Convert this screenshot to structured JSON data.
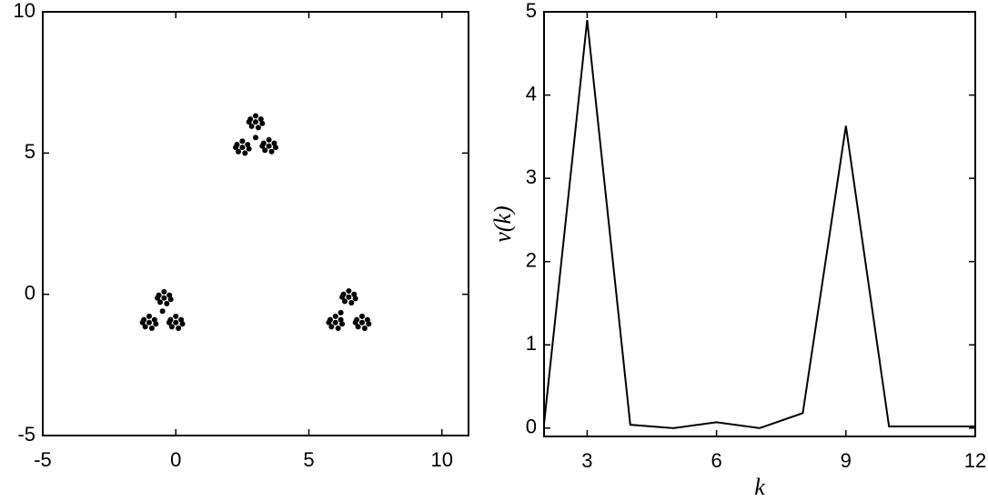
{
  "chart_data": [
    {
      "type": "scatter",
      "color": "#000000",
      "xlim": [
        -5,
        11
      ],
      "xticks": [
        -5,
        0,
        5,
        10
      ],
      "ylim": [
        -5,
        10
      ],
      "yticks": [
        -5,
        0,
        5,
        10
      ],
      "x": [
        -0.44,
        -0.24,
        -0.64,
        -0.34,
        -0.59,
        -0.19,
        -0.69,
        -0.44,
        -1,
        -0.8,
        -1.2,
        -0.9,
        -1.15,
        -0.75,
        -1.25,
        -1,
        0,
        0.2,
        -0.2,
        0.1,
        -0.15,
        0.25,
        -0.25,
        0,
        3,
        3.2,
        2.8,
        3.1,
        2.85,
        3.25,
        2.75,
        3,
        2.5,
        2.7,
        2.3,
        2.6,
        2.35,
        2.75,
        2.25,
        2.5,
        3.5,
        3.7,
        3.3,
        3.6,
        3.35,
        3.75,
        3.25,
        3.5,
        6.5,
        6.7,
        6.3,
        6.6,
        6.35,
        6.75,
        6.25,
        6.5,
        6,
        6.2,
        5.8,
        6.1,
        5.85,
        6.25,
        5.75,
        6,
        7,
        7.2,
        6.8,
        7.1,
        6.85,
        7.25,
        6.75,
        7,
        6.2,
        -0.5,
        3.0
      ],
      "y": [
        -0.13,
        -0.03,
        -0.03,
        -0.33,
        -0.28,
        -0.18,
        -0.13,
        0.09,
        -1,
        -0.9,
        -0.9,
        -1.2,
        -1.15,
        -1.05,
        -1,
        -0.78,
        -1,
        -0.9,
        -0.9,
        -1.2,
        -1.15,
        -1.05,
        -1,
        -0.78,
        6.1,
        6.2,
        6.2,
        5.9,
        5.95,
        6.05,
        6.1,
        6.32,
        5.2,
        5.3,
        5.3,
        5.0,
        5.05,
        5.15,
        5.2,
        5.42,
        5.25,
        5.35,
        5.35,
        5.05,
        5.1,
        5.2,
        5.25,
        5.47,
        -0.1,
        0,
        0,
        -0.3,
        -0.25,
        -0.15,
        -0.1,
        0.12,
        -1,
        -0.9,
        -0.9,
        -1.2,
        -1.15,
        -1.05,
        -1,
        -0.78,
        -1,
        -0.9,
        -0.9,
        -1.2,
        -1.15,
        -1.05,
        -1,
        -0.78,
        -0.65,
        -0.6,
        5.55
      ]
    },
    {
      "type": "line",
      "color": "#000000",
      "x": [
        2,
        3,
        4,
        5,
        6,
        7,
        8,
        9,
        10,
        11,
        12
      ],
      "values": [
        0.05,
        4.9,
        0.04,
        0.0,
        0.07,
        0.0,
        0.18,
        3.63,
        0.02,
        0.02,
        0.02
      ],
      "xlim": [
        2,
        12
      ],
      "xticks": [
        3,
        6,
        9,
        12
      ],
      "ylim": [
        -0.1,
        5
      ],
      "yticks": [
        0,
        1,
        2,
        3,
        4,
        5
      ],
      "xlabel": "k",
      "ylabel": "v(k)"
    }
  ]
}
